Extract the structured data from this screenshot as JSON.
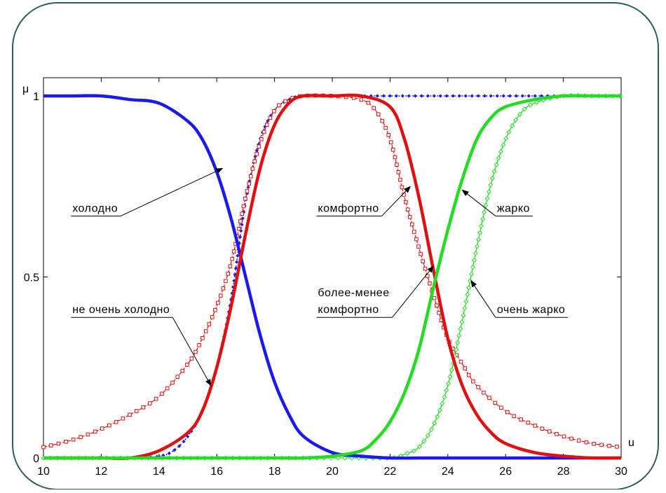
{
  "chart_data": {
    "type": "line",
    "title": "",
    "xlabel": "u",
    "ylabel": "μ",
    "xlim": [
      10,
      30
    ],
    "ylim": [
      0,
      1
    ],
    "x_ticks": [
      "10",
      "12",
      "14",
      "16",
      "18",
      "20",
      "22",
      "24",
      "26",
      "28",
      "30"
    ],
    "y_ticks": [
      "0",
      "0.5",
      "1"
    ],
    "series": [
      {
        "name": "холодно",
        "color": "#1a1aee",
        "style": "thick-solid",
        "x": [
          10,
          11,
          12,
          13,
          14,
          15,
          15.5,
          16,
          16.5,
          17,
          17.5,
          18,
          18.5,
          19,
          20,
          21,
          22,
          23,
          24,
          25,
          26,
          27,
          28,
          29,
          30
        ],
        "y": [
          1.0,
          1.0,
          1.0,
          0.99,
          0.98,
          0.93,
          0.88,
          0.79,
          0.66,
          0.5,
          0.34,
          0.21,
          0.12,
          0.06,
          0.015,
          0.005,
          0.0,
          0.0,
          0.0,
          0.0,
          0.0,
          0.0,
          0.0,
          0.0,
          0.0
        ]
      },
      {
        "name": "не очень холодно",
        "color": "#1a1aee",
        "style": "dotted-diamond",
        "x": [
          10,
          11,
          12,
          13,
          14,
          14.5,
          15,
          15.5,
          16,
          16.5,
          17,
          17.5,
          18,
          18.5,
          19,
          20,
          21,
          22,
          23,
          24,
          25,
          26,
          27,
          28,
          29,
          30
        ],
        "y": [
          0.0,
          0.0,
          0.0,
          0.0,
          0.005,
          0.02,
          0.06,
          0.13,
          0.25,
          0.44,
          0.71,
          0.88,
          0.96,
          0.99,
          1.0,
          1.0,
          1.0,
          1.0,
          1.0,
          1.0,
          1.0,
          1.0,
          1.0,
          1.0,
          1.0,
          1.0
        ]
      },
      {
        "name": "комфортно",
        "color": "#e01010",
        "style": "thick-solid",
        "x": [
          10,
          12,
          13,
          14,
          15,
          15.5,
          16,
          16.5,
          17,
          17.5,
          18,
          18.5,
          19,
          20,
          21,
          22,
          22.5,
          23,
          23.5,
          24,
          24.5,
          25,
          25.5,
          26,
          27,
          28,
          29,
          30
        ],
        "y": [
          0.0,
          0.0,
          0.0,
          0.02,
          0.07,
          0.13,
          0.25,
          0.42,
          0.62,
          0.8,
          0.92,
          0.98,
          1.0,
          1.0,
          1.0,
          0.97,
          0.88,
          0.72,
          0.52,
          0.33,
          0.2,
          0.12,
          0.07,
          0.04,
          0.015,
          0.005,
          0.0,
          0.0
        ]
      },
      {
        "name": "более-менее комфортно",
        "color": "#e01010",
        "style": "thin-square-marker",
        "x": [
          10,
          11,
          12,
          13,
          14,
          15,
          15.5,
          16,
          16.5,
          17,
          17.5,
          18,
          18.5,
          19,
          20,
          21,
          21.5,
          22,
          22.5,
          23,
          23.5,
          24,
          24.5,
          25,
          26,
          27,
          28,
          29,
          30
        ],
        "y": [
          0.03,
          0.05,
          0.08,
          0.12,
          0.17,
          0.26,
          0.33,
          0.42,
          0.54,
          0.72,
          0.87,
          0.96,
          0.99,
          1.0,
          1.0,
          0.99,
          0.96,
          0.88,
          0.72,
          0.58,
          0.45,
          0.33,
          0.26,
          0.2,
          0.13,
          0.09,
          0.06,
          0.04,
          0.03
        ]
      },
      {
        "name": "жарко",
        "color": "#22dd22",
        "style": "thick-solid",
        "x": [
          10,
          12,
          14,
          16,
          18,
          19,
          20,
          21,
          21.5,
          22,
          22.5,
          23,
          23.5,
          24,
          24.5,
          25,
          25.5,
          26,
          27,
          28,
          29,
          30
        ],
        "y": [
          0.0,
          0.0,
          0.0,
          0.0,
          0.0,
          0.0,
          0.005,
          0.02,
          0.05,
          0.1,
          0.18,
          0.3,
          0.47,
          0.63,
          0.77,
          0.88,
          0.94,
          0.97,
          0.99,
          1.0,
          1.0,
          1.0
        ]
      },
      {
        "name": "очень жарко",
        "color": "#22dd22",
        "style": "thin-diamond-marker",
        "x": [
          10,
          12,
          14,
          16,
          18,
          20,
          21,
          22,
          22.5,
          23,
          23.5,
          24,
          24.5,
          25,
          25.5,
          26,
          26.5,
          27,
          28,
          29,
          30
        ],
        "y": [
          0.0,
          0.0,
          0.0,
          0.0,
          0.0,
          0.0,
          0.0,
          0.0,
          0.01,
          0.03,
          0.09,
          0.2,
          0.38,
          0.58,
          0.76,
          0.88,
          0.95,
          0.98,
          1.0,
          1.0,
          1.0
        ]
      }
    ],
    "annotations": [
      {
        "text": "холодно",
        "label_x": 11,
        "label_y": 0.68,
        "target_x": 16.2,
        "target_y": 0.8
      },
      {
        "text": "не очень холодно",
        "label_x": 11,
        "label_y": 0.4,
        "target_x": 15.8,
        "target_y": 0.2
      },
      {
        "text": "комфортно",
        "label_x": 19.5,
        "label_y": 0.68,
        "target_x": 22.7,
        "target_y": 0.75
      },
      {
        "text": "более-менее\nкомфортно",
        "label_x": 19.5,
        "label_y": 0.4,
        "target_x": 23.5,
        "target_y": 0.53
      },
      {
        "text": "жарко",
        "label_x": 25.7,
        "label_y": 0.68,
        "target_x": 24.5,
        "target_y": 0.74
      },
      {
        "text": "очень жарко",
        "label_x": 25.7,
        "label_y": 0.4,
        "target_x": 24.8,
        "target_y": 0.49
      }
    ]
  }
}
